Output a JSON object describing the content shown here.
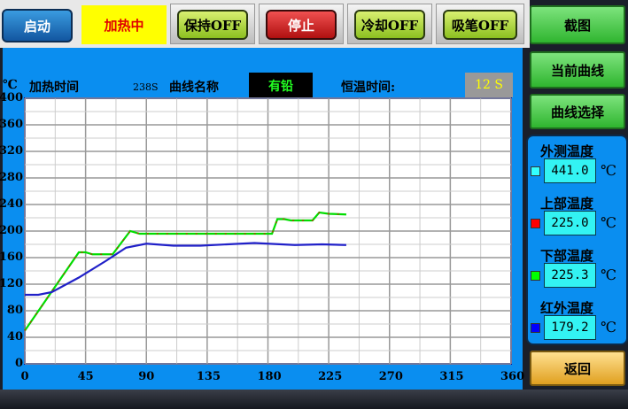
{
  "toolbar": {
    "start": "启动",
    "heating": "加热中",
    "hold": "保持OFF",
    "stop": "停止",
    "cool": "冷却OFF",
    "suction": "吸笔OFF",
    "screenshot": "截图"
  },
  "side": {
    "current_curve": "当前曲线",
    "curve_select": "曲线选择",
    "back": "返回"
  },
  "header": {
    "unit": "℃",
    "heat_time_label": "加热时间",
    "heat_time_value": "238S",
    "curve_name_label": "曲线名称",
    "curve_name_value": "有铅",
    "hold_time_label": "恒温时间:",
    "hold_time_value": "12 S"
  },
  "sensors": [
    {
      "label": "外测温度",
      "value": "441.0",
      "unit": "℃",
      "color": "#33ffff"
    },
    {
      "label": "上部温度",
      "value": "225.0",
      "unit": "℃",
      "color": "#ff0000"
    },
    {
      "label": "下部温度",
      "value": "225.3",
      "unit": "℃",
      "color": "#00ff00"
    },
    {
      "label": "红外温度",
      "value": "179.2",
      "unit": "℃",
      "color": "#0000ff"
    }
  ],
  "chart_data": {
    "type": "line",
    "xlim": [
      0,
      360
    ],
    "ylim": [
      0,
      400
    ],
    "x_ticks": [
      "0",
      "45",
      "90",
      "135",
      "180",
      "225",
      "270",
      "315",
      "360"
    ],
    "y_ticks": [
      "400",
      "360",
      "320",
      "280",
      "240",
      "200",
      "160",
      "120",
      "80",
      "40",
      "0"
    ],
    "grid": true,
    "series": [
      {
        "color": "#00dd00",
        "points": [
          [
            0,
            50
          ],
          [
            40,
            168
          ],
          [
            45,
            168
          ],
          [
            50,
            165
          ],
          [
            65,
            165
          ],
          [
            78,
            200
          ],
          [
            85,
            196
          ],
          [
            183,
            196
          ],
          [
            187,
            218
          ],
          [
            192,
            218
          ],
          [
            197,
            216
          ],
          [
            213,
            216
          ],
          [
            218,
            228
          ],
          [
            225,
            226
          ],
          [
            238,
            225
          ]
        ]
      },
      {
        "color": "#cc2200",
        "points": [
          [
            0,
            50
          ],
          [
            40,
            168
          ],
          [
            45,
            168
          ],
          [
            50,
            165
          ],
          [
            65,
            165
          ],
          [
            78,
            200
          ],
          [
            85,
            196
          ],
          [
            183,
            196
          ],
          [
            187,
            218
          ],
          [
            192,
            218
          ],
          [
            197,
            216
          ],
          [
            213,
            216
          ],
          [
            218,
            228
          ],
          [
            225,
            226
          ],
          [
            238,
            225
          ]
        ]
      },
      {
        "color": "#2020c8",
        "points": [
          [
            0,
            104
          ],
          [
            10,
            104
          ],
          [
            20,
            108
          ],
          [
            40,
            130
          ],
          [
            60,
            155
          ],
          [
            75,
            175
          ],
          [
            90,
            181
          ],
          [
            110,
            178
          ],
          [
            130,
            178
          ],
          [
            170,
            182
          ],
          [
            200,
            179
          ],
          [
            220,
            180
          ],
          [
            238,
            179
          ]
        ]
      }
    ]
  }
}
